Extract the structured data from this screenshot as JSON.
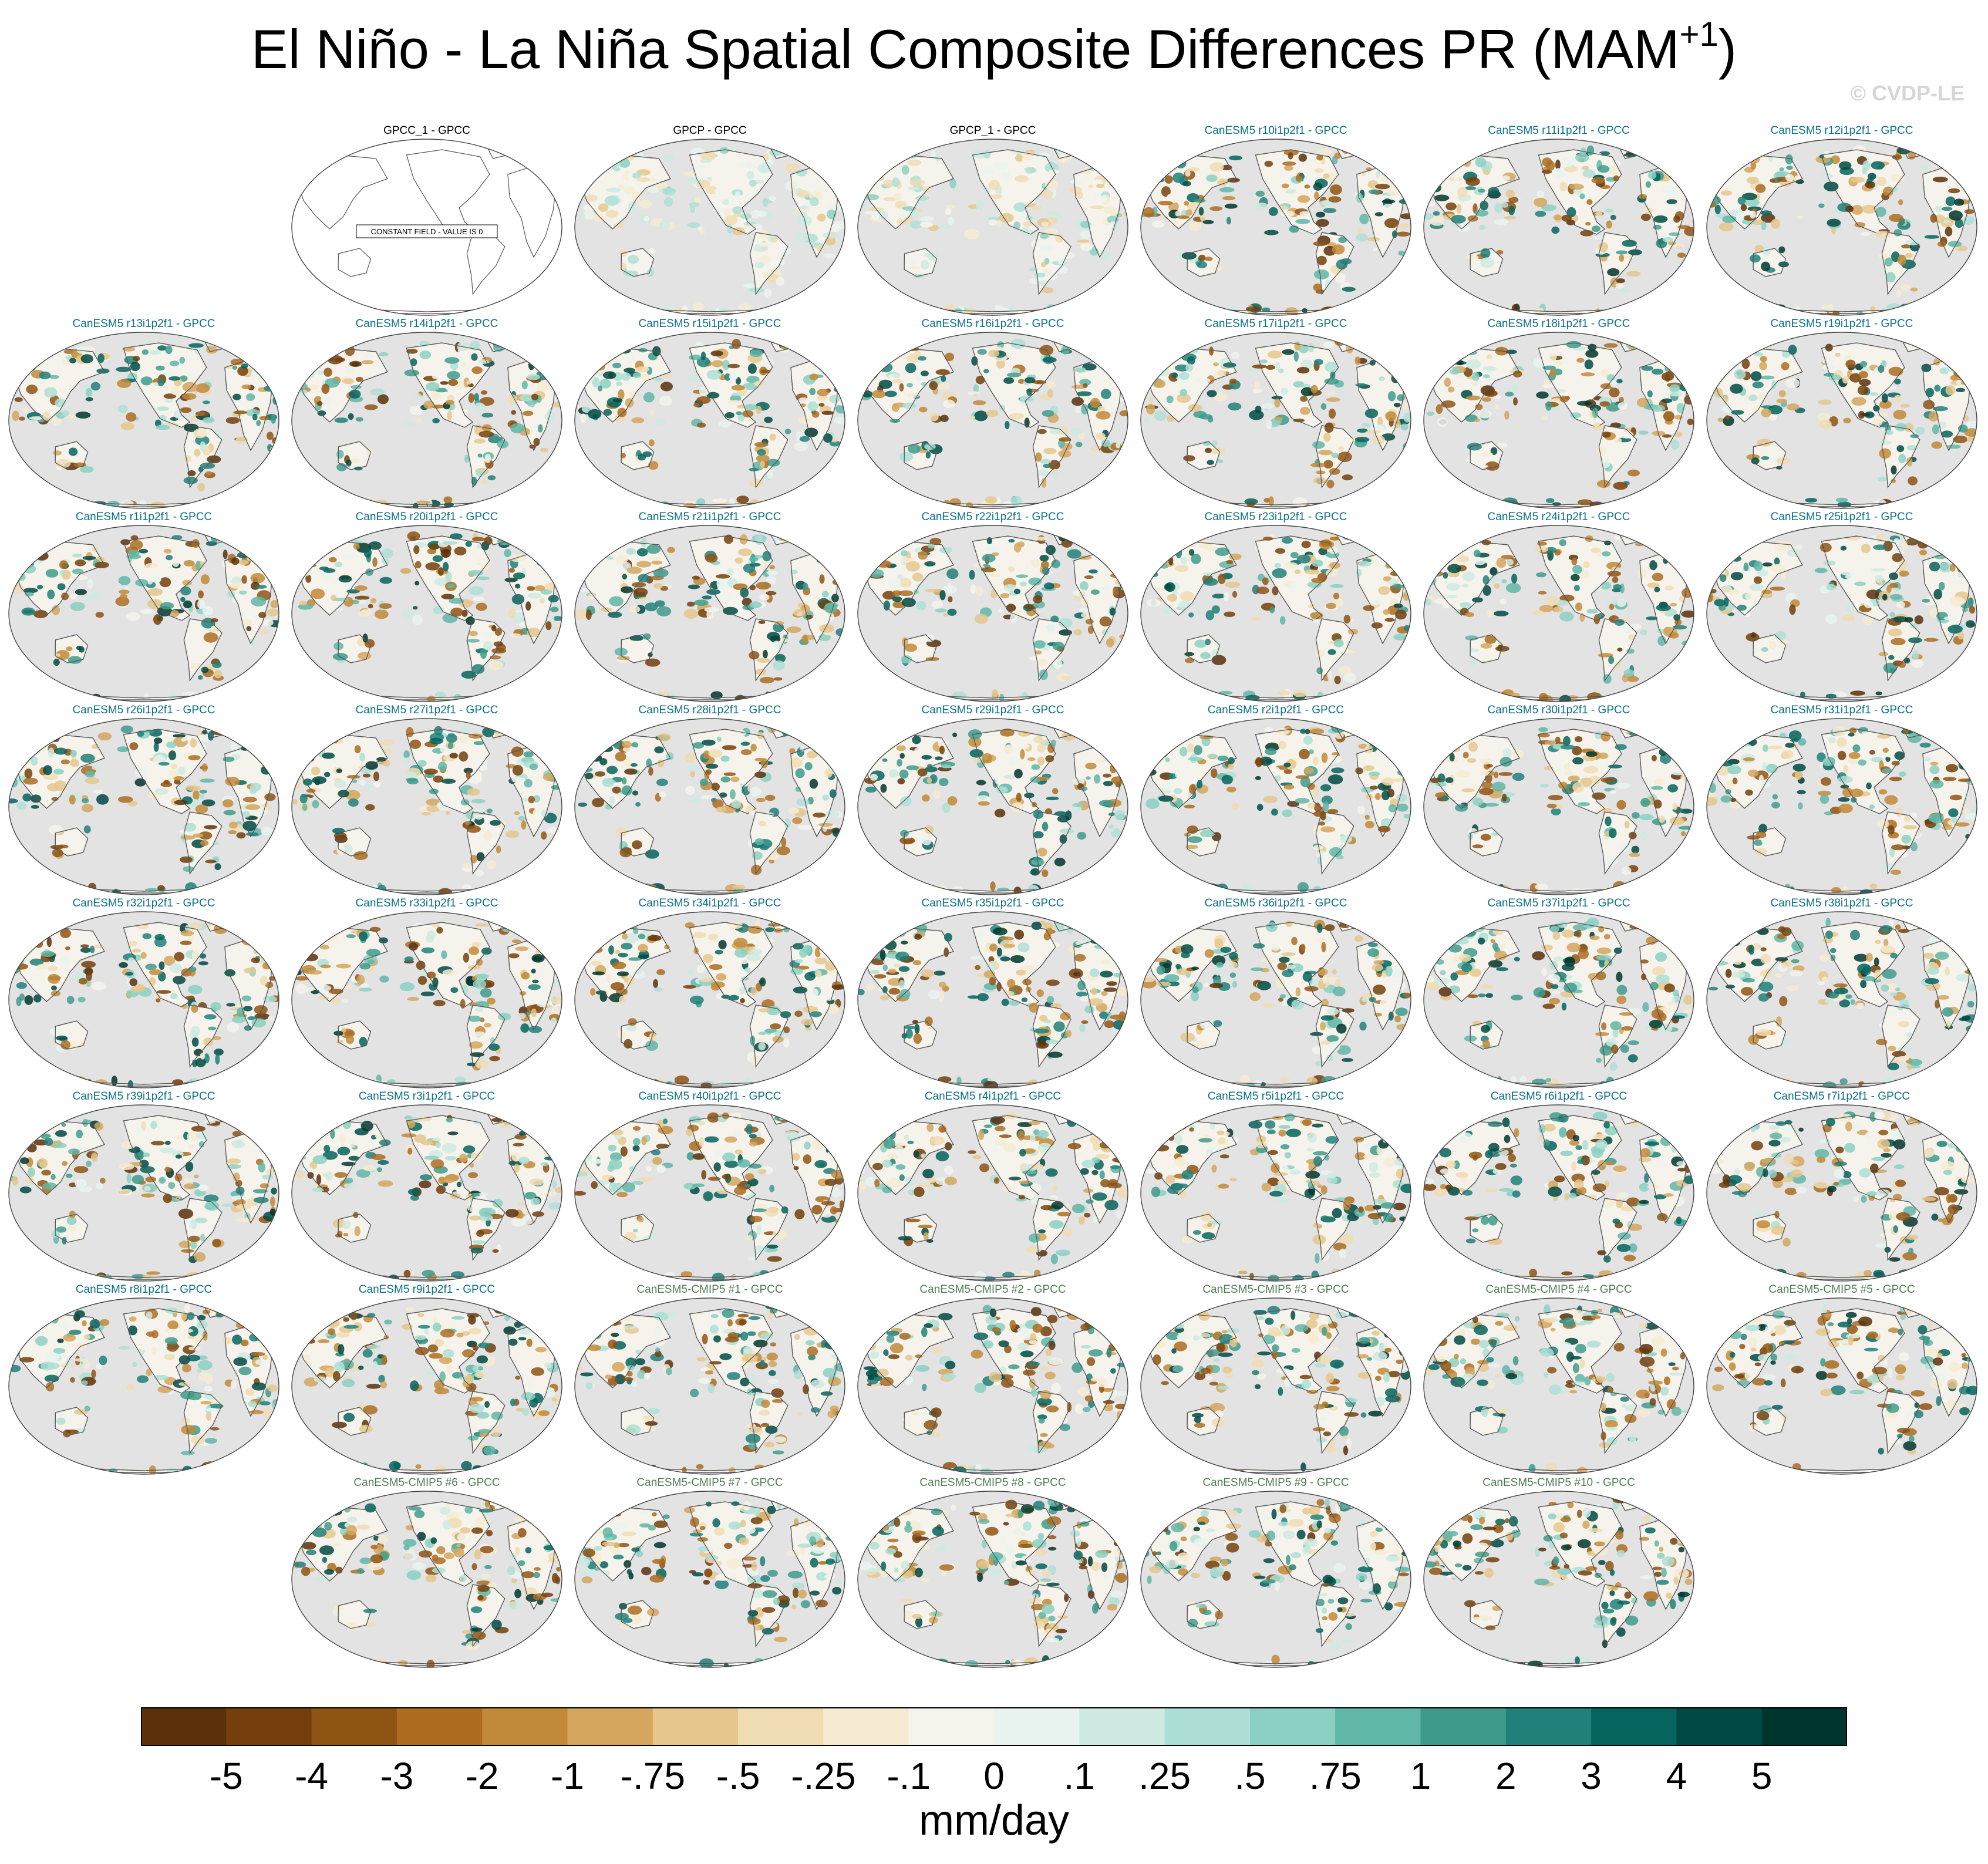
{
  "title": "El Niño - La Niña Spatial Composite Differences PR (MAM",
  "title_superscript": "+1",
  "title_close": ")",
  "watermark": "© CVDP-LE",
  "colors": {
    "observations_title": "#000000",
    "canesm5_title": "#0c6f86",
    "cmip5_title": "#4f7e52",
    "ocean_mask": "#e3e3e3",
    "coastline": "#555555"
  },
  "chart_data": {
    "type": "heatmap",
    "title": "El Niño - La Niña Spatial Composite Differences PR (MAM+1)",
    "variable": "PR",
    "season": "MAM+1",
    "colorbar": {
      "units": "mm/day",
      "tick_labels": [
        "-5",
        "-4",
        "-3",
        "-2",
        "-1",
        "-.75",
        "-.5",
        "-.25",
        "-.1",
        "0",
        ".1",
        ".25",
        ".5",
        ".75",
        "1",
        "2",
        "3",
        "4",
        "5"
      ],
      "colors": [
        "#5b300a",
        "#743f0c",
        "#8f5313",
        "#ac6d21",
        "#c28938",
        "#d4a65e",
        "#e5c78c",
        "#f0dcb3",
        "#f6ebd2",
        "#f5f3ec",
        "#e9f3f0",
        "#cfeae3",
        "#aedfd6",
        "#8bd0c3",
        "#60b6a7",
        "#3e9b8c",
        "#21807a",
        "#05645e",
        "#004a43",
        "#00352d"
      ]
    },
    "panels": [
      {
        "label": "GPCC_1 - GPCC",
        "group": "obs",
        "note": "CONSTANT FIELD - VALUE IS 0"
      },
      {
        "label": "GPCP - GPCC",
        "group": "obs"
      },
      {
        "label": "GPCP_1 - GPCC",
        "group": "obs"
      },
      {
        "label": "CanESM5 r10i1p2f1 - GPCC",
        "group": "canesm5"
      },
      {
        "label": "CanESM5 r11i1p2f1 - GPCC",
        "group": "canesm5"
      },
      {
        "label": "CanESM5 r12i1p2f1 - GPCC",
        "group": "canesm5"
      },
      {
        "label": "CanESM5 r13i1p2f1 - GPCC",
        "group": "canesm5"
      },
      {
        "label": "CanESM5 r14i1p2f1 - GPCC",
        "group": "canesm5"
      },
      {
        "label": "CanESM5 r15i1p2f1 - GPCC",
        "group": "canesm5"
      },
      {
        "label": "CanESM5 r16i1p2f1 - GPCC",
        "group": "canesm5"
      },
      {
        "label": "CanESM5 r17i1p2f1 - GPCC",
        "group": "canesm5"
      },
      {
        "label": "CanESM5 r18i1p2f1 - GPCC",
        "group": "canesm5"
      },
      {
        "label": "CanESM5 r19i1p2f1 - GPCC",
        "group": "canesm5"
      },
      {
        "label": "CanESM5 r1i1p2f1 - GPCC",
        "group": "canesm5"
      },
      {
        "label": "CanESM5 r20i1p2f1 - GPCC",
        "group": "canesm5"
      },
      {
        "label": "CanESM5 r21i1p2f1 - GPCC",
        "group": "canesm5"
      },
      {
        "label": "CanESM5 r22i1p2f1 - GPCC",
        "group": "canesm5"
      },
      {
        "label": "CanESM5 r23i1p2f1 - GPCC",
        "group": "canesm5"
      },
      {
        "label": "CanESM5 r24i1p2f1 - GPCC",
        "group": "canesm5"
      },
      {
        "label": "CanESM5 r25i1p2f1 - GPCC",
        "group": "canesm5"
      },
      {
        "label": "CanESM5 r26i1p2f1 - GPCC",
        "group": "canesm5"
      },
      {
        "label": "CanESM5 r27i1p2f1 - GPCC",
        "group": "canesm5"
      },
      {
        "label": "CanESM5 r28i1p2f1 - GPCC",
        "group": "canesm5"
      },
      {
        "label": "CanESM5 r29i1p2f1 - GPCC",
        "group": "canesm5"
      },
      {
        "label": "CanESM5 r2i1p2f1 - GPCC",
        "group": "canesm5"
      },
      {
        "label": "CanESM5 r30i1p2f1 - GPCC",
        "group": "canesm5"
      },
      {
        "label": "CanESM5 r31i1p2f1 - GPCC",
        "group": "canesm5"
      },
      {
        "label": "CanESM5 r32i1p2f1 - GPCC",
        "group": "canesm5"
      },
      {
        "label": "CanESM5 r33i1p2f1 - GPCC",
        "group": "canesm5"
      },
      {
        "label": "CanESM5 r34i1p2f1 - GPCC",
        "group": "canesm5"
      },
      {
        "label": "CanESM5 r35i1p2f1 - GPCC",
        "group": "canesm5"
      },
      {
        "label": "CanESM5 r36i1p2f1 - GPCC",
        "group": "canesm5"
      },
      {
        "label": "CanESM5 r37i1p2f1 - GPCC",
        "group": "canesm5"
      },
      {
        "label": "CanESM5 r38i1p2f1 - GPCC",
        "group": "canesm5"
      },
      {
        "label": "CanESM5 r39i1p2f1 - GPCC",
        "group": "canesm5"
      },
      {
        "label": "CanESM5 r3i1p2f1 - GPCC",
        "group": "canesm5"
      },
      {
        "label": "CanESM5 r40i1p2f1 - GPCC",
        "group": "canesm5"
      },
      {
        "label": "CanESM5 r4i1p2f1 - GPCC",
        "group": "canesm5"
      },
      {
        "label": "CanESM5 r5i1p2f1 - GPCC",
        "group": "canesm5"
      },
      {
        "label": "CanESM5 r6i1p2f1 - GPCC",
        "group": "canesm5"
      },
      {
        "label": "CanESM5 r7i1p2f1 - GPCC",
        "group": "canesm5"
      },
      {
        "label": "CanESM5 r8i1p2f1 - GPCC",
        "group": "canesm5"
      },
      {
        "label": "CanESM5 r9i1p2f1 - GPCC",
        "group": "canesm5"
      },
      {
        "label": "CanESM5-CMIP5 #1 - GPCC",
        "group": "cmip5"
      },
      {
        "label": "CanESM5-CMIP5 #2 - GPCC",
        "group": "cmip5"
      },
      {
        "label": "CanESM5-CMIP5 #3 - GPCC",
        "group": "cmip5"
      },
      {
        "label": "CanESM5-CMIP5 #4 - GPCC",
        "group": "cmip5"
      },
      {
        "label": "CanESM5-CMIP5 #5 - GPCC",
        "group": "cmip5"
      },
      {
        "label": "CanESM5-CMIP5 #6 - GPCC",
        "group": "cmip5"
      },
      {
        "label": "CanESM5-CMIP5 #7 - GPCC",
        "group": "cmip5"
      },
      {
        "label": "CanESM5-CMIP5 #8 - GPCC",
        "group": "cmip5"
      },
      {
        "label": "CanESM5-CMIP5 #9 - GPCC",
        "group": "cmip5"
      },
      {
        "label": "CanESM5-CMIP5 #10 - GPCC",
        "group": "cmip5"
      }
    ]
  }
}
